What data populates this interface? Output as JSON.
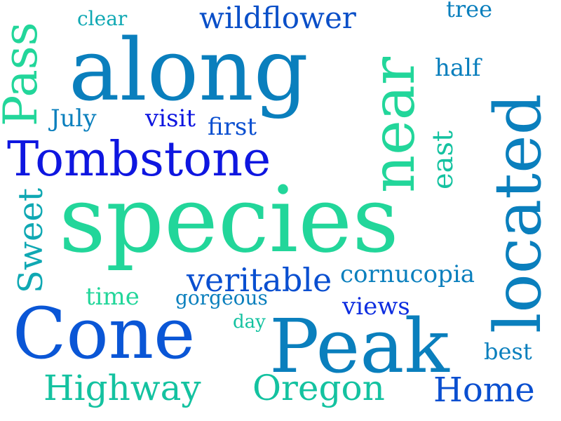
{
  "words": [
    {
      "id": "word-along",
      "text": "along",
      "color": "#0a7fbd"
    },
    {
      "id": "word-species",
      "text": "species",
      "color": "#22d69a"
    },
    {
      "id": "word-tombstone",
      "text": "Tombstone",
      "color": "#0e16e0"
    },
    {
      "id": "word-cone",
      "text": "Cone",
      "color": "#0a56d6"
    },
    {
      "id": "word-peak",
      "text": "Peak",
      "color": "#0a7fbd"
    },
    {
      "id": "word-located",
      "text": "located",
      "color": "#0a7fbd"
    },
    {
      "id": "word-near",
      "text": "near",
      "color": "#22d69a"
    },
    {
      "id": "word-pass",
      "text": "Pass",
      "color": "#22d69a"
    },
    {
      "id": "word-sweet",
      "text": "Sweet",
      "color": "#0fa8b3"
    },
    {
      "id": "word-wildflower",
      "text": "wildflower",
      "color": "#0a4fc8"
    },
    {
      "id": "word-highway",
      "text": "Highway",
      "color": "#14c2a0"
    },
    {
      "id": "word-oregon",
      "text": "Oregon",
      "color": "#14c2a0"
    },
    {
      "id": "word-home",
      "text": "Home",
      "color": "#0a4fd0"
    },
    {
      "id": "word-veritable",
      "text": "veritable",
      "color": "#0a4fd0"
    },
    {
      "id": "word-cornucopia",
      "text": "cornucopia",
      "color": "#0a7fbd"
    },
    {
      "id": "word-east",
      "text": "east",
      "color": "#14c2a0"
    },
    {
      "id": "word-views",
      "text": "views",
      "color": "#0e2ee0"
    },
    {
      "id": "word-best",
      "text": "best",
      "color": "#0a7fbd"
    },
    {
      "id": "word-half",
      "text": "half",
      "color": "#0a7fbd"
    },
    {
      "id": "word-visit",
      "text": "visit",
      "color": "#0e16e0"
    },
    {
      "id": "word-first",
      "text": "first",
      "color": "#0a4fd0"
    },
    {
      "id": "word-july",
      "text": "July",
      "color": "#0a7fbd"
    },
    {
      "id": "word-time",
      "text": "time",
      "color": "#22d69a"
    },
    {
      "id": "word-gorgeous",
      "text": "gorgeous",
      "color": "#0a7fbd"
    },
    {
      "id": "word-day",
      "text": "day",
      "color": "#14c2a0"
    },
    {
      "id": "word-clear",
      "text": "clear",
      "color": "#0fa8b3"
    },
    {
      "id": "word-tree",
      "text": "tree",
      "color": "#0a7fbd"
    }
  ]
}
